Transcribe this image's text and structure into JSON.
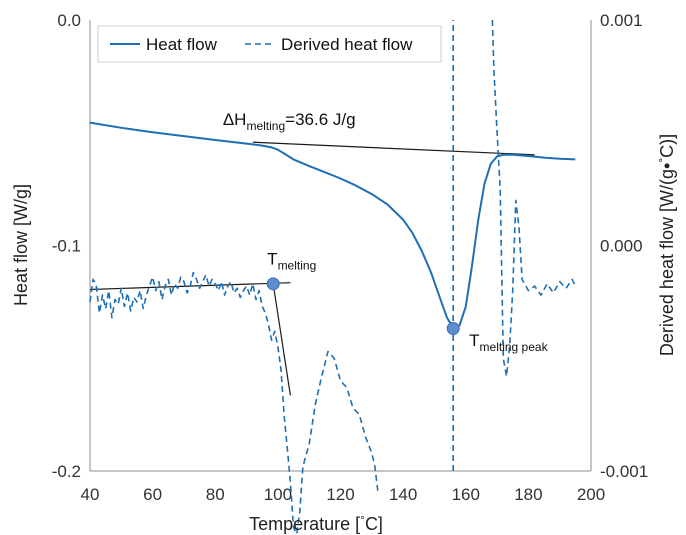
{
  "chart_data": {
    "type": "line",
    "xlabel": "Temperature [°C]",
    "ylabel_left": "Heat flow [W/g]",
    "ylabel_right": "Derived heat flow [W/(g•°C)]",
    "xlim": [
      40,
      200
    ],
    "xticks": [
      "40",
      "60",
      "80",
      "100",
      "120",
      "140",
      "160",
      "180",
      "200"
    ],
    "ylim_left": [
      -0.2,
      0.0
    ],
    "yticks_left": [
      "-0.2",
      "-0.1",
      "0.0"
    ],
    "ylim_right": [
      -0.001,
      0.001
    ],
    "yticks_right": [
      "-0.001",
      "0.000",
      "0.001"
    ],
    "grid": false,
    "legend_position": "top-left",
    "series": [
      {
        "name": "Heat flow",
        "axis": "left",
        "style": "solid",
        "color": "#1f6fb2",
        "x": [
          40,
          50,
          60,
          70,
          80,
          90,
          95,
          98,
          100,
          102,
          105,
          110,
          115,
          120,
          125,
          130,
          135,
          140,
          143,
          146,
          149,
          152,
          154,
          156,
          157,
          158,
          160,
          162,
          164,
          166,
          168,
          170,
          172,
          175,
          180,
          185,
          190,
          195
        ],
        "y": [
          -0.0455,
          -0.0478,
          -0.0498,
          -0.0515,
          -0.0532,
          -0.0548,
          -0.0557,
          -0.0565,
          -0.0575,
          -0.0592,
          -0.0618,
          -0.0648,
          -0.0675,
          -0.0703,
          -0.0735,
          -0.0772,
          -0.0818,
          -0.0885,
          -0.0945,
          -0.1025,
          -0.1123,
          -0.1242,
          -0.132,
          -0.1365,
          -0.1368,
          -0.1355,
          -0.127,
          -0.109,
          -0.0885,
          -0.0725,
          -0.0638,
          -0.0605,
          -0.0598,
          -0.0598,
          -0.0603,
          -0.061,
          -0.0615,
          -0.0618
        ]
      },
      {
        "name": "Derived heat flow",
        "axis": "right",
        "style": "dashed",
        "color": "#1f6fb2",
        "segments": [
          {
            "x": [
              40,
              41,
              42,
              43,
              44,
              45,
              46,
              47,
              48,
              49,
              50,
              51,
              52,
              53,
              54,
              55,
              56,
              57,
              58,
              59,
              60,
              61,
              62,
              63,
              64,
              65,
              66,
              67,
              68,
              69,
              70,
              71,
              72,
              73,
              74,
              75,
              76,
              77,
              78,
              79,
              80,
              81,
              82,
              83,
              84,
              85,
              86,
              87,
              88,
              89,
              90,
              91,
              92,
              93,
              94,
              95,
              96,
              97,
              98,
              99,
              100,
              101,
              102,
              103,
              104,
              105,
              106,
              107,
              108,
              110,
              112,
              114,
              116,
              118,
              120,
              122,
              124,
              126,
              128,
              130,
              131,
              132
            ],
            "y": [
              -0.00025,
              -0.00015,
              -0.00018,
              -0.0003,
              -0.00022,
              -0.00028,
              -0.0002,
              -0.00032,
              -0.00024,
              -0.00026,
              -0.00019,
              -0.00027,
              -0.00021,
              -0.00029,
              -0.00023,
              -0.00025,
              -0.0002,
              -0.00028,
              -0.00022,
              -0.00018,
              -0.00014,
              -0.0002,
              -0.00016,
              -0.00024,
              -0.00018,
              -0.00015,
              -0.00022,
              -0.00017,
              -0.00019,
              -0.00014,
              -0.00016,
              -0.00021,
              -0.00018,
              -0.00012,
              -0.00015,
              -0.00019,
              -0.00016,
              -0.00013,
              -0.00018,
              -0.00015,
              -0.00017,
              -0.0002,
              -0.00016,
              -0.00022,
              -0.00018,
              -0.00016,
              -0.00021,
              -0.00019,
              -0.00023,
              -0.0002,
              -0.00018,
              -0.00022,
              -0.00017,
              -0.00024,
              -0.0002,
              -0.00027,
              -0.0003,
              -0.00035,
              -0.00042,
              -0.00038,
              -0.00045,
              -0.00055,
              -0.00075,
              -0.0009,
              -0.00105,
              -0.00125,
              -0.00128,
              -0.00118,
              -0.00098,
              -0.00088,
              -0.0007,
              -0.00058,
              -0.00047,
              -0.0005,
              -0.0006,
              -0.00063,
              -0.00072,
              -0.00075,
              -0.00085,
              -0.00092,
              -0.00098,
              -0.0011
            ]
          },
          {
            "x": [
              156,
              156
            ],
            "y": [
              -0.001,
              0.001
            ]
          },
          {
            "x": [
              168.5,
              169,
              170,
              171,
              172,
              173,
              174,
              175,
              176,
              177,
              178,
              180,
              182,
              184,
              186,
              188,
              190,
              192,
              194,
              195
            ],
            "y": [
              0.001,
              0.00078,
              0.0005,
              0.00025,
              -0.0005,
              -0.00058,
              -0.00045,
              -0.0002,
              0.0002,
              8e-05,
              -0.00015,
              -0.0002,
              -0.00018,
              -0.00022,
              -0.00017,
              -0.00021,
              -0.00016,
              -0.00019,
              -0.00015,
              -0.00018
            ]
          }
        ]
      }
    ],
    "annotations": [
      {
        "id": "delta-h",
        "text": "ΔH",
        "sub": "melting",
        "suffix": "=36.6 J/g",
        "x": 92,
        "y_left": -0.0465
      },
      {
        "id": "t-melting",
        "text": "T",
        "sub": "melting",
        "x": 98.5,
        "y_left": -0.1085
      },
      {
        "id": "t-melting-peak",
        "text": "T",
        "sub": "melting peak",
        "x": 163,
        "y_left": -0.1445
      }
    ],
    "markers": [
      {
        "id": "t-melting-point",
        "x": 98.5,
        "y_left": -0.117,
        "color": "#5b8fd1"
      },
      {
        "id": "t-melting-peak-point",
        "x": 156,
        "y_left": -0.1368,
        "color": "#5b8fd1"
      }
    ],
    "baselines": [
      {
        "id": "enthalpy-baseline",
        "x": [
          92,
          182
        ],
        "y_left": [
          -0.0542,
          -0.0598
        ]
      },
      {
        "id": "onset-baseline",
        "x": [
          40,
          104
        ],
        "y_left": [
          -0.1195,
          -0.1165
        ]
      },
      {
        "id": "onset-tangent",
        "x": [
          98.5,
          104
        ],
        "y_left": [
          -0.117,
          -0.1665
        ]
      }
    ]
  }
}
